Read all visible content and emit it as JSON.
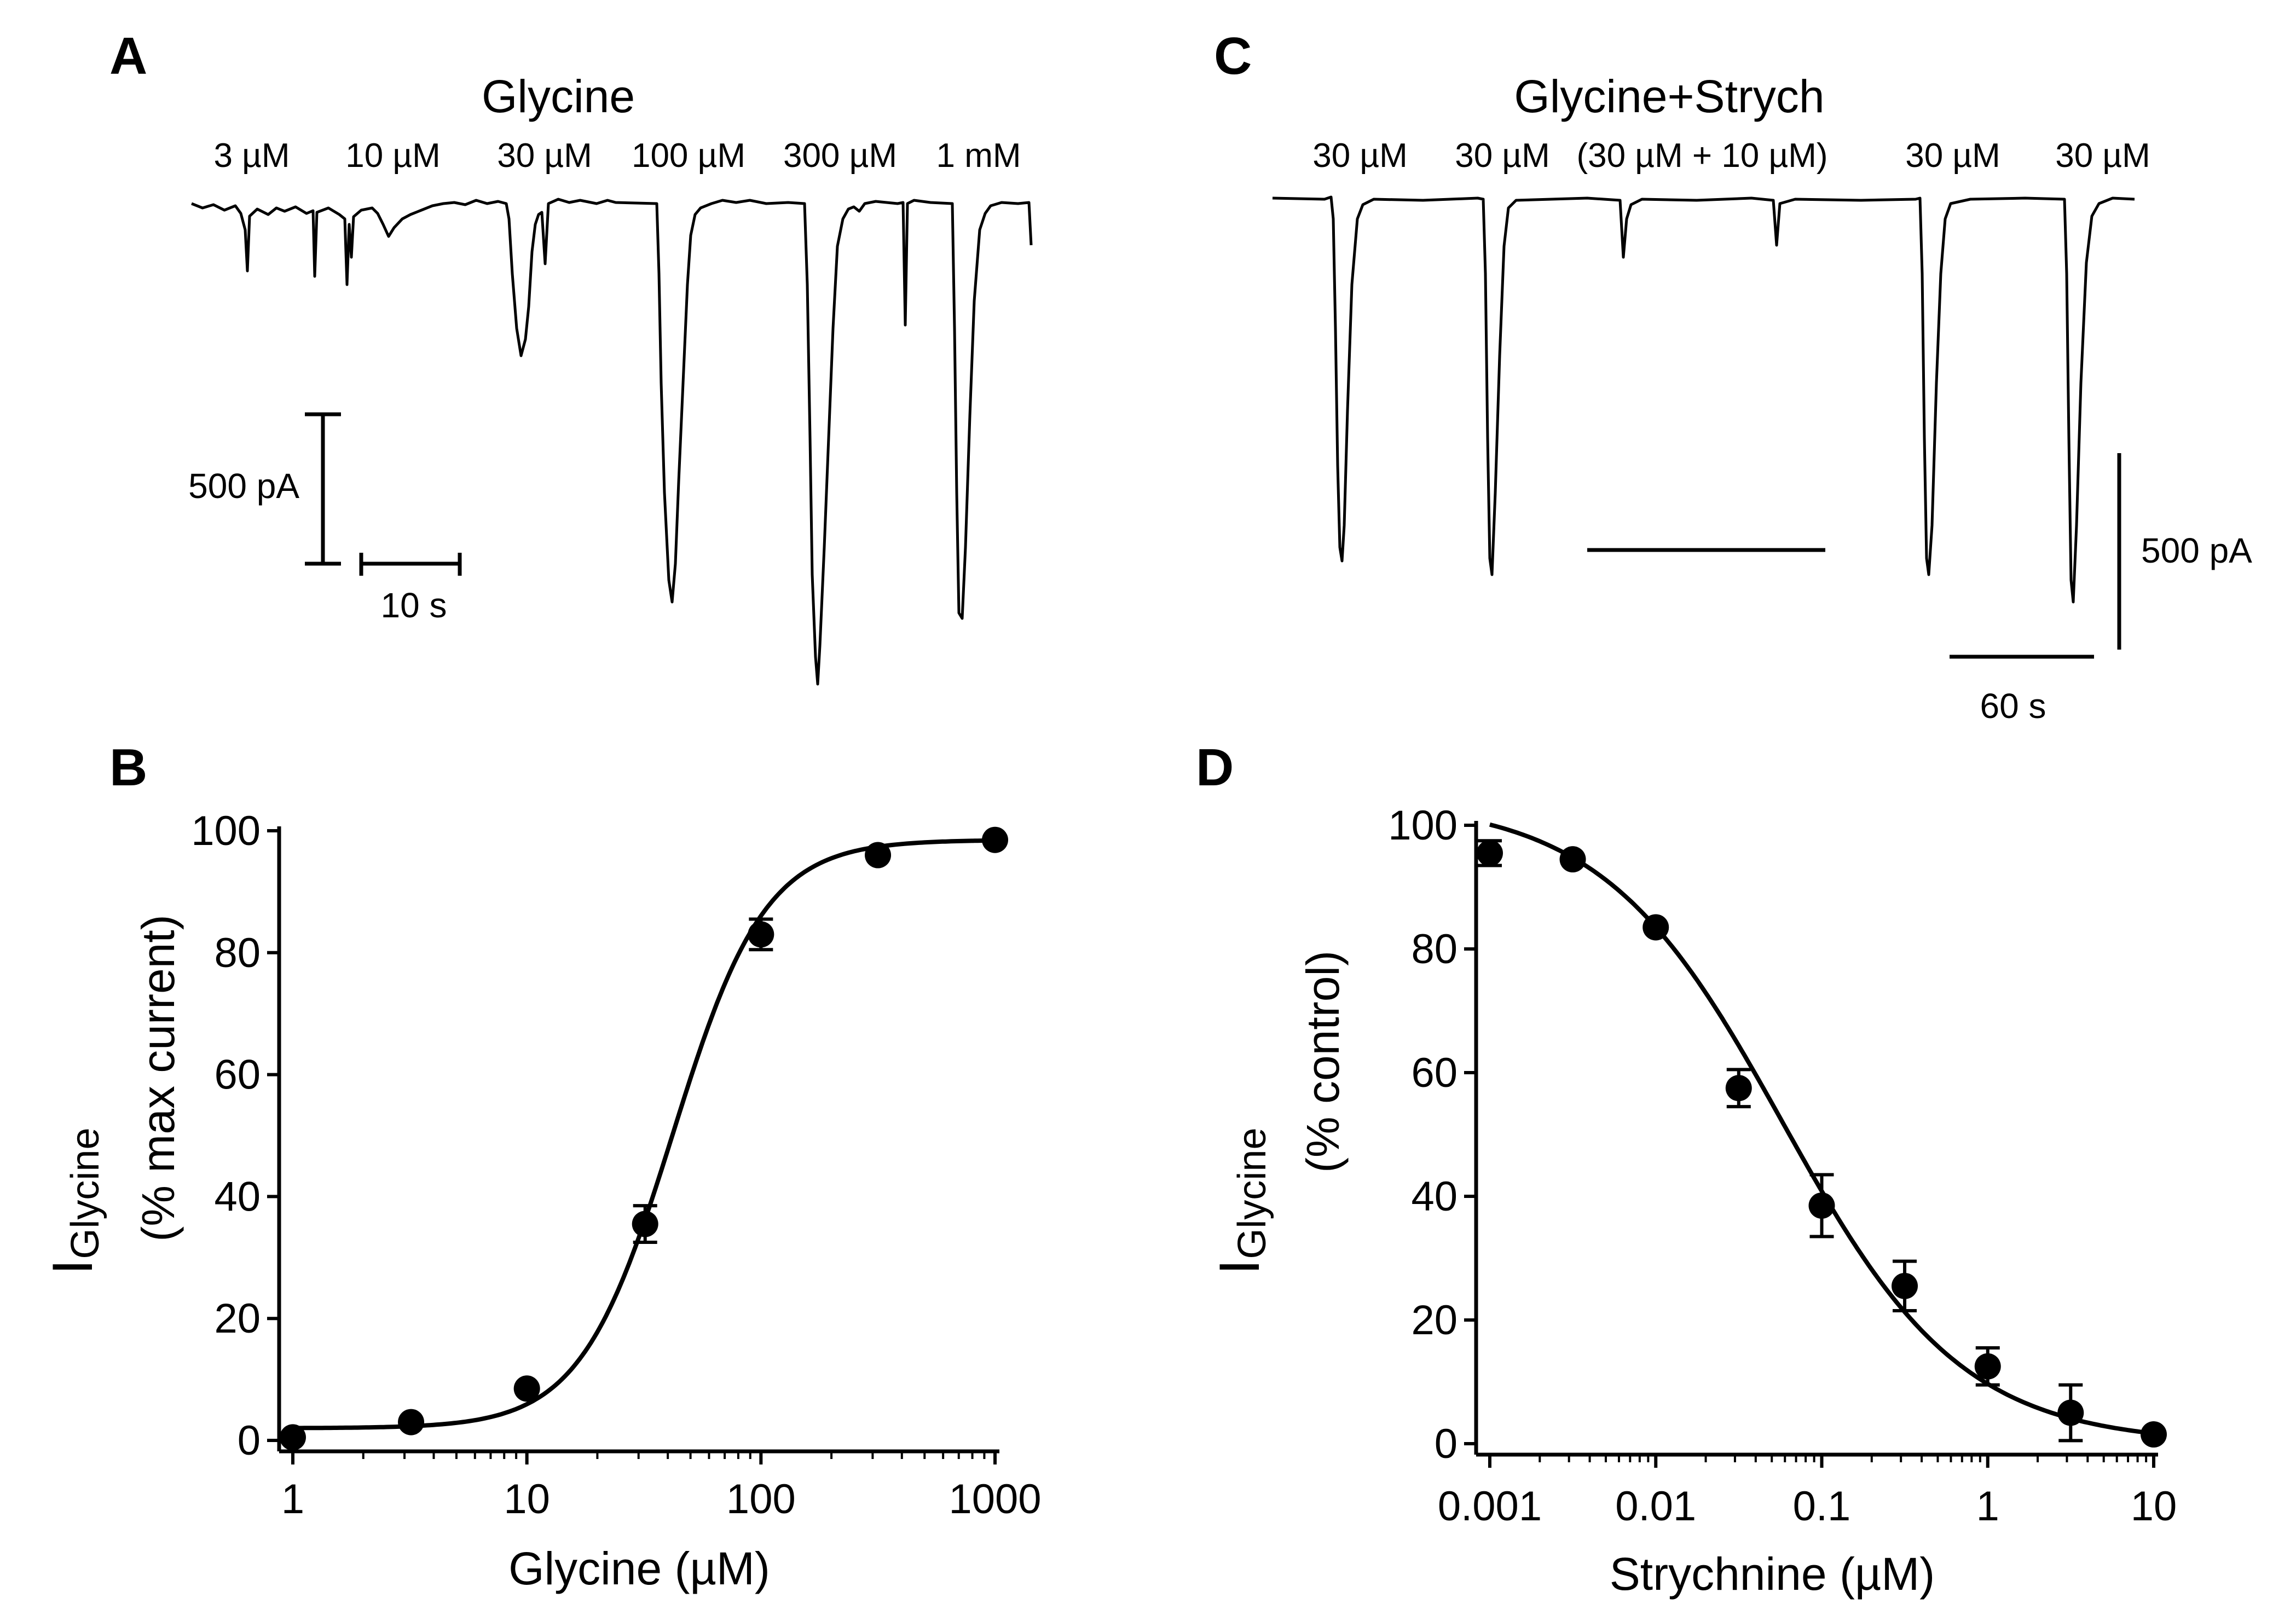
{
  "panels": {
    "a": {
      "letter": "A",
      "title": "Glycine",
      "conc_labels": [
        "3 µM",
        "10 µM",
        "30 µM",
        "100 µM",
        "300 µM",
        "1 mM"
      ],
      "scale_current": "500 pA",
      "scale_time": "10 s"
    },
    "c": {
      "letter": "C",
      "title": "Glycine+Strych",
      "conc_labels": [
        "30 µM",
        "30 µM",
        "(30 µM + 10 µM)",
        "30 µM",
        "30 µM"
      ],
      "scale_current": "500 pA",
      "scale_time": "60 s"
    },
    "b": {
      "letter": "B",
      "ylabel_main": "I",
      "ylabel_sub": "Glycine",
      "ylabel_unit": "(% max current)",
      "xlabel": "Glycine (µM)"
    },
    "d": {
      "letter": "D",
      "ylabel_main": "I",
      "ylabel_sub": "Glycine",
      "ylabel_unit": "(% control)",
      "xlabel": "Strychnine (µM)"
    }
  },
  "chart_data": [
    {
      "panel": "B",
      "type": "scatter",
      "xscale": "log",
      "xlim": [
        1,
        1000
      ],
      "ylim": [
        0,
        100
      ],
      "xticks": [
        1,
        10,
        100,
        1000
      ],
      "xtick_labels": [
        "1",
        "10",
        "100",
        "1000"
      ],
      "yticks": [
        0,
        20,
        40,
        60,
        80,
        100
      ],
      "ytick_labels": [
        "0",
        "20",
        "40",
        "60",
        "80",
        "100"
      ],
      "xlabel": "Glycine (µM)",
      "ylabel": "IGlycine (% max current)",
      "points": [
        {
          "x": 1,
          "y": 0.5,
          "err": 0
        },
        {
          "x": 3.2,
          "y": 3,
          "err": 0
        },
        {
          "x": 10,
          "y": 8.5,
          "err": 0
        },
        {
          "x": 32,
          "y": 35.5,
          "err": 3
        },
        {
          "x": 100,
          "y": 83,
          "err": 2.5
        },
        {
          "x": 316,
          "y": 96,
          "err": 0
        },
        {
          "x": 1000,
          "y": 98.5,
          "err": 0
        }
      ],
      "fit": {
        "bottom": 2,
        "top": 98.5,
        "ec50": 42,
        "hill": 2.2
      }
    },
    {
      "panel": "D",
      "type": "scatter",
      "xscale": "log",
      "xlim": [
        0.001,
        10
      ],
      "ylim": [
        0,
        100
      ],
      "xticks": [
        0.001,
        0.01,
        0.1,
        1,
        10
      ],
      "xtick_labels": [
        "0.001",
        "0.01",
        "0.1",
        "1",
        "10"
      ],
      "yticks": [
        0,
        20,
        40,
        60,
        80,
        100
      ],
      "ytick_labels": [
        "0",
        "20",
        "40",
        "60",
        "80",
        "100"
      ],
      "xlabel": "Strychnine (µM)",
      "ylabel": "IGlycine (% control)",
      "points": [
        {
          "x": 0.001,
          "y": 95.5,
          "err": 2
        },
        {
          "x": 0.00316,
          "y": 94.5,
          "err": 0
        },
        {
          "x": 0.01,
          "y": 83.5,
          "err": 0
        },
        {
          "x": 0.0316,
          "y": 57.5,
          "err": 3
        },
        {
          "x": 0.1,
          "y": 38.5,
          "err": 5
        },
        {
          "x": 0.316,
          "y": 25.5,
          "err": 4
        },
        {
          "x": 1,
          "y": 12.5,
          "err": 3
        },
        {
          "x": 3.16,
          "y": 5,
          "err": 4.5
        },
        {
          "x": 10,
          "y": 1.5,
          "err": 0
        }
      ],
      "fit": {
        "bottom": 0,
        "top": 104,
        "ic50": 0.058,
        "hill": 0.8
      }
    }
  ]
}
